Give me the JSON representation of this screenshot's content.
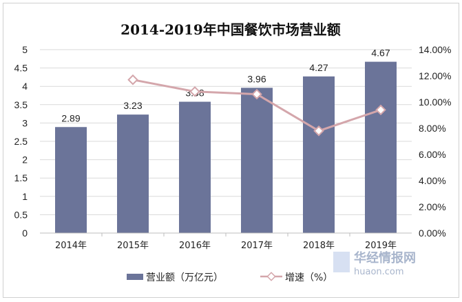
{
  "chart_data": {
    "type": "bar",
    "title": "2014-2019年中国餐饮市场营业额",
    "categories": [
      "2014年",
      "2015年",
      "2016年",
      "2017年",
      "2018年",
      "2019年"
    ],
    "series": [
      {
        "name": "营业额（万亿元）",
        "type": "bar",
        "axis": "left",
        "values": [
          2.89,
          3.23,
          3.58,
          3.96,
          4.27,
          4.67
        ],
        "labels": [
          "2.89",
          "3.23",
          "3.58",
          "3.96",
          "4.27",
          "4.67"
        ],
        "color": "#6b7499"
      },
      {
        "name": "增速（%）",
        "type": "line",
        "axis": "right",
        "values": [
          null,
          11.7,
          10.8,
          10.6,
          7.8,
          9.4
        ],
        "color": "#d4a6ab"
      }
    ],
    "y_left": {
      "min": 0,
      "max": 5,
      "ticks": [
        "0",
        "0.5",
        "1",
        "1.5",
        "2",
        "2.5",
        "3",
        "3.5",
        "4",
        "4.5",
        "5"
      ]
    },
    "y_right": {
      "min": 0,
      "max": 14,
      "ticks": [
        "0.00%",
        "2.00%",
        "4.00%",
        "6.00%",
        "8.00%",
        "10.00%",
        "12.00%",
        "14.00%"
      ]
    },
    "grid": true,
    "legend": "bottom"
  },
  "watermark": {
    "brand": "华经情报网",
    "domain": "huaon.com"
  }
}
